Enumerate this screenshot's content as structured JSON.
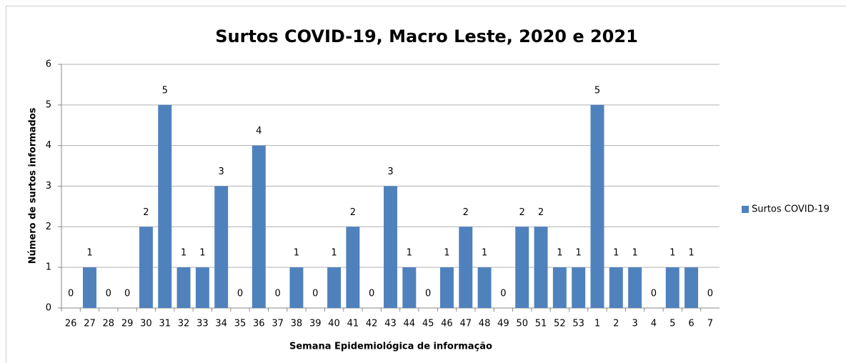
{
  "chart_data": {
    "type": "bar",
    "title": "Surtos COVID-19, Macro Leste, 2020 e 2021",
    "x_label": "Semana Epidemiológica  de informação",
    "y_label": "Número de surtos informados",
    "categories": [
      "26",
      "27",
      "28",
      "29",
      "30",
      "31",
      "32",
      "33",
      "34",
      "35",
      "36",
      "37",
      "38",
      "39",
      "40",
      "41",
      "42",
      "43",
      "44",
      "45",
      "46",
      "47",
      "48",
      "49",
      "50",
      "51",
      "52",
      "53",
      "1",
      "2",
      "3",
      "4",
      "5",
      "6",
      "7"
    ],
    "series": [
      {
        "name": "Surtos COVID-19",
        "color": "#4f81bd",
        "values": [
          0,
          1,
          0,
          0,
          2,
          5,
          1,
          1,
          3,
          0,
          4,
          0,
          1,
          0,
          1,
          2,
          0,
          3,
          1,
          0,
          1,
          2,
          1,
          0,
          2,
          2,
          1,
          1,
          5,
          1,
          1,
          0,
          1,
          1,
          0
        ]
      }
    ],
    "ylim": [
      0,
      6
    ],
    "yticks": [
      0,
      1,
      2,
      3,
      4,
      5,
      6
    ],
    "grid": true,
    "legend": "right"
  }
}
